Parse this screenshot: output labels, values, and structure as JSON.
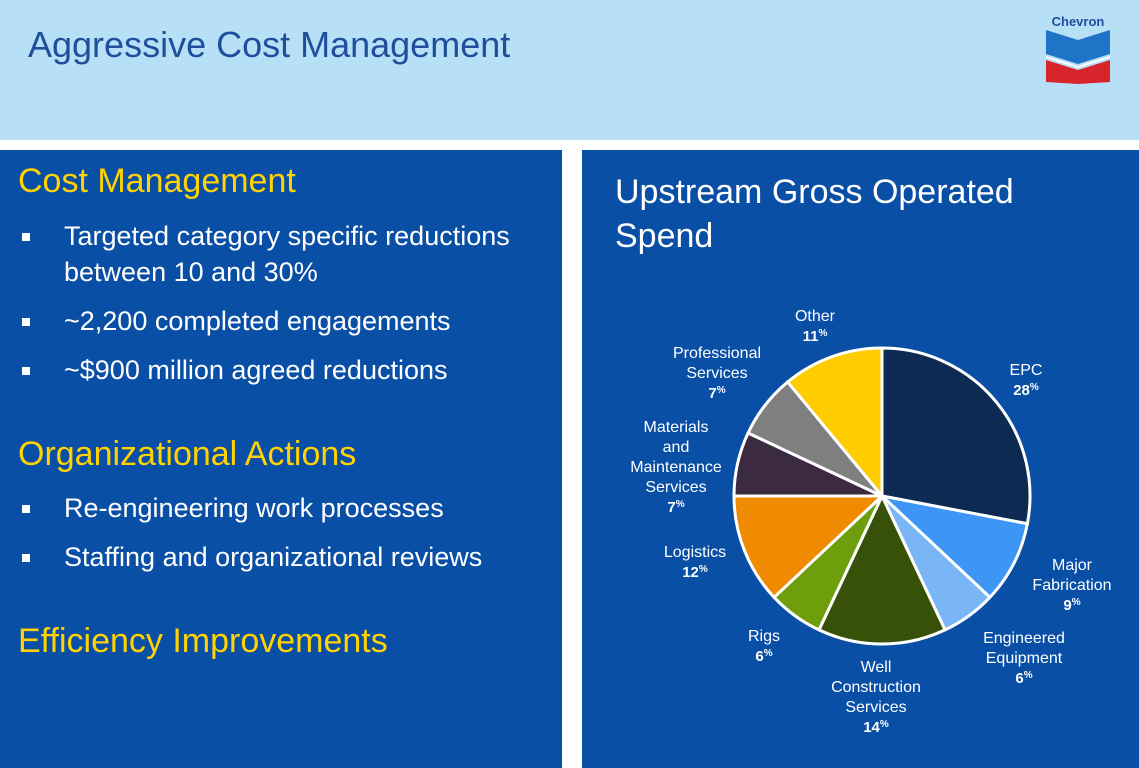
{
  "header": {
    "title": "Aggressive Cost Management",
    "logo_text": "Chevron"
  },
  "left": {
    "sections": [
      {
        "heading": "Cost Management",
        "bullets": [
          "Targeted category specific reductions between 10 and 30%",
          "~2,200 completed engagements",
          "~$900 million agreed reductions"
        ]
      },
      {
        "heading": "Organizational Actions",
        "bullets": [
          "Re-engineering work processes",
          "Staffing and organizational reviews"
        ]
      },
      {
        "heading": "Efficiency Improvements",
        "bullets": []
      }
    ]
  },
  "colors": {
    "header_bg": "#b7e0f7",
    "panel_bg": "#0a4fa6",
    "heading_yellow": "#ffd200",
    "title_blue": "#1f4e9c"
  },
  "chart_data": {
    "type": "pie",
    "title": "Upstream Gross Operated Spend",
    "unit": "%",
    "start_angle_deg": 0,
    "direction": "clockwise",
    "slices": [
      {
        "label": "EPC",
        "value": 28,
        "color": "#0d2a52"
      },
      {
        "label": "Major Fabrication",
        "value": 9,
        "color": "#3d95f5"
      },
      {
        "label": "Engineered Equipment",
        "value": 6,
        "color": "#7ab5f6"
      },
      {
        "label": "Well Construction Services",
        "value": 14,
        "color": "#375208"
      },
      {
        "label": "Rigs",
        "value": 6,
        "color": "#6f9e0c"
      },
      {
        "label": "Logistics",
        "value": 12,
        "color": "#f08a00"
      },
      {
        "label": "Materials and Maintenance Services",
        "value": 7,
        "color": "#3c2a40"
      },
      {
        "label": "Professional Services",
        "value": 7,
        "color": "#7f7f7f"
      },
      {
        "label": "Other",
        "value": 11,
        "color": "#ffcc00"
      }
    ]
  }
}
